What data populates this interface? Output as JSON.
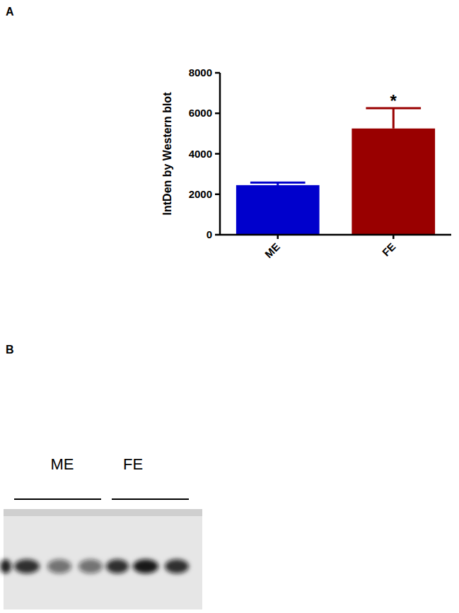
{
  "panels": [
    "A",
    "B"
  ],
  "chart_data": {
    "type": "bar",
    "y_label": "IntDen by Western blot",
    "categories": [
      "ME",
      "FE"
    ],
    "values": [
      2450,
      5250
    ],
    "errors": [
      130,
      1000
    ],
    "colors": [
      "#0000cc",
      "#990000"
    ],
    "ylim": [
      0,
      8000
    ],
    "yticks": [
      0,
      2000,
      4000,
      6000,
      8000
    ],
    "grid": false,
    "annotations": [
      {
        "category": "FE",
        "text": "*"
      }
    ]
  },
  "blot": {
    "groups": [
      "ME",
      "FE"
    ]
  }
}
